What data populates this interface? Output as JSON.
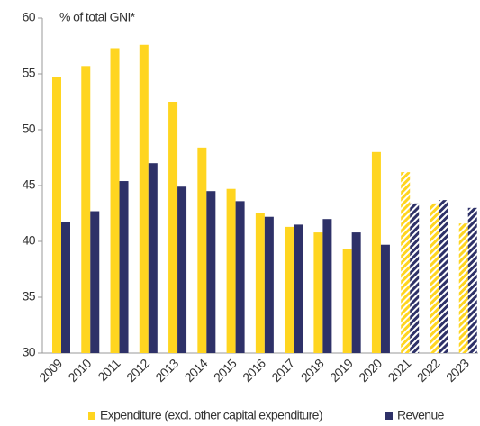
{
  "chart_data": {
    "type": "bar",
    "annotation": "% of total GNI*",
    "categories": [
      "2009",
      "2010",
      "2011",
      "2012",
      "2013",
      "2014",
      "2015",
      "2016",
      "2017",
      "2018",
      "2019",
      "2020",
      "2021",
      "2022",
      "2023"
    ],
    "hatched": [
      false,
      false,
      false,
      false,
      false,
      false,
      false,
      false,
      false,
      false,
      false,
      false,
      true,
      true,
      true
    ],
    "series": [
      {
        "name": "Expenditure (excl. other capital expenditure)",
        "color": "#ffd520",
        "values": [
          54.7,
          55.7,
          57.3,
          57.6,
          52.5,
          48.4,
          44.7,
          42.5,
          41.3,
          40.8,
          39.3,
          48.0,
          46.2,
          43.4,
          41.6
        ]
      },
      {
        "name": "Revenue",
        "color": "#2e3168",
        "values": [
          41.7,
          42.7,
          45.4,
          47.0,
          44.9,
          44.5,
          43.6,
          42.2,
          41.5,
          42.0,
          40.8,
          39.7,
          43.4,
          43.7,
          43.0
        ]
      }
    ],
    "ylim": [
      30,
      60
    ],
    "yticks": [
      30,
      35,
      40,
      45,
      50,
      55,
      60
    ],
    "grid": false,
    "legend": "bottom"
  }
}
